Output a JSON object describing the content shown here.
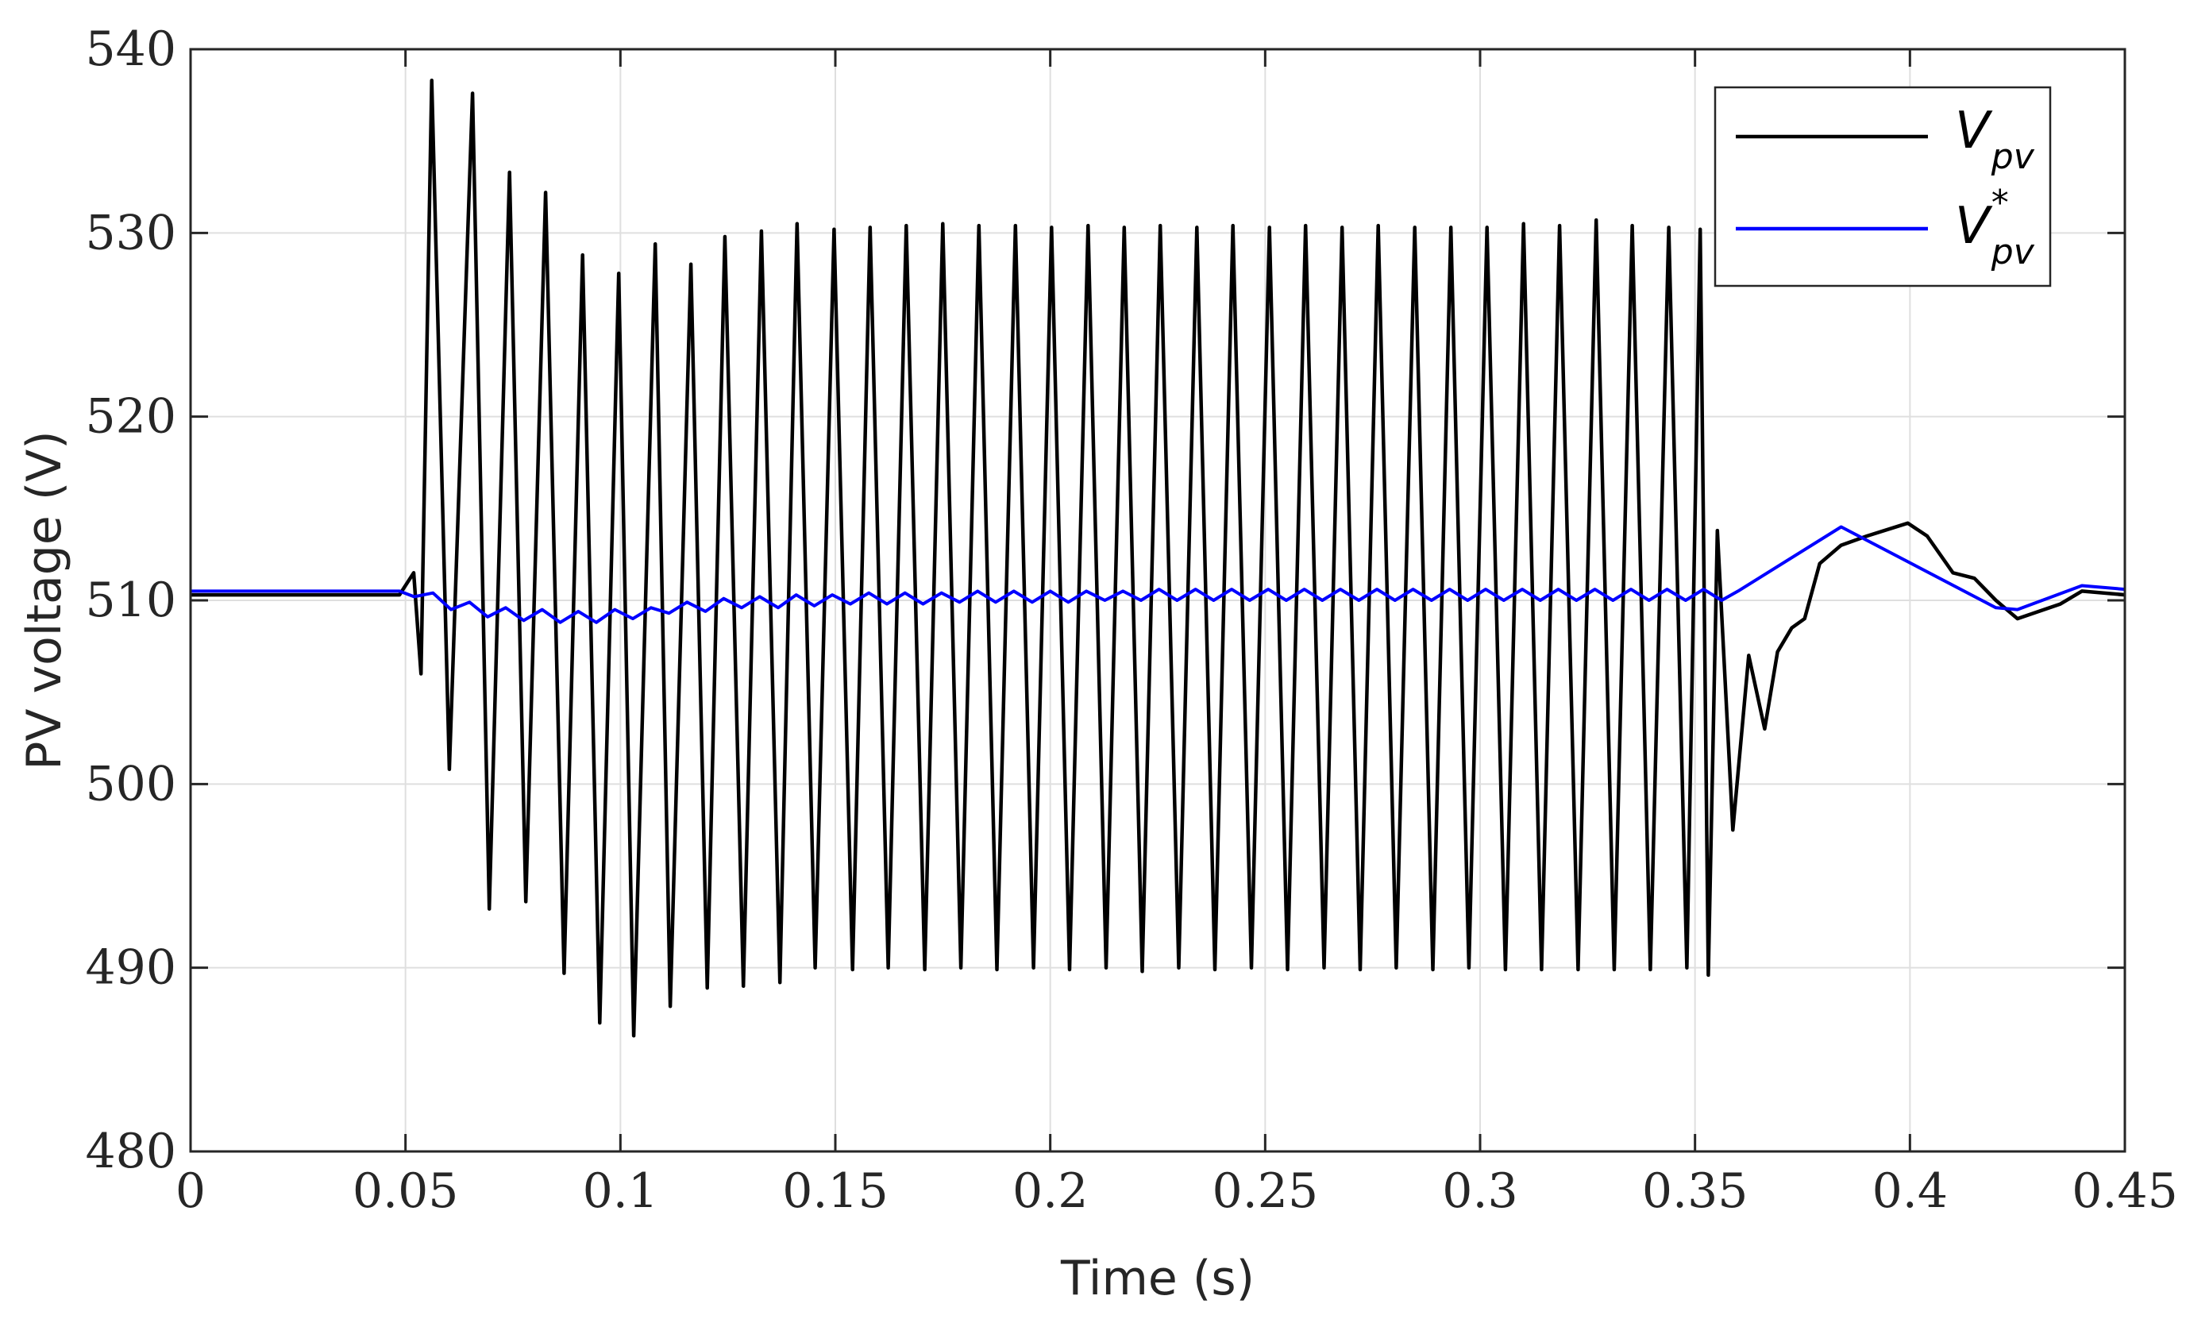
{
  "chart_data": {
    "type": "line",
    "title": "",
    "xlabel": "Time (s)",
    "ylabel": "PV voltage (V)",
    "xlim": [
      0,
      0.45
    ],
    "ylim": [
      480,
      540
    ],
    "xticks": [
      0,
      0.05,
      0.1,
      0.15,
      0.2,
      0.25,
      0.3,
      0.35,
      0.4,
      0.45
    ],
    "xtick_labels": [
      "0",
      "0.05",
      "0.1",
      "0.15",
      "0.2",
      "0.25",
      "0.3",
      "0.35",
      "0.4",
      "0.45"
    ],
    "yticks": [
      480,
      490,
      500,
      510,
      520,
      530,
      540
    ],
    "ytick_labels": [
      "480",
      "490",
      "500",
      "510",
      "520",
      "530",
      "540"
    ],
    "grid": true,
    "legend_position": "top-right",
    "series": [
      {
        "name": "V_pv",
        "legend_main": "V",
        "legend_sub": "pv",
        "legend_sup": "",
        "color": "#000000",
        "x": [
          0,
          0.0486,
          0.0519,
          0.0536,
          0.0561,
          0.0602,
          0.0656,
          0.0695,
          0.0742,
          0.078,
          0.0826,
          0.0869,
          0.0912,
          0.0952,
          0.0996,
          0.1031,
          0.1081,
          0.1116,
          0.1164,
          0.1202,
          0.1243,
          0.1286,
          0.1328,
          0.1371,
          0.1411,
          0.1453,
          0.1497,
          0.154,
          0.1581,
          0.1623,
          0.1665,
          0.1708,
          0.175,
          0.1792,
          0.1834,
          0.1876,
          0.1919,
          0.1961,
          0.2003,
          0.2045,
          0.2088,
          0.213,
          0.2172,
          0.2214,
          0.2256,
          0.2299,
          0.2341,
          0.2383,
          0.2425,
          0.2468,
          0.251,
          0.2552,
          0.2594,
          0.2637,
          0.2679,
          0.2721,
          0.2763,
          0.2805,
          0.2848,
          0.289,
          0.2932,
          0.2974,
          0.3016,
          0.3059,
          0.3101,
          0.3143,
          0.3185,
          0.3228,
          0.327,
          0.3312,
          0.3354,
          0.3396,
          0.3439,
          0.3481,
          0.3512,
          0.3531,
          0.3552,
          0.3588,
          0.3625,
          0.3662,
          0.3692,
          0.3725,
          0.3755,
          0.379,
          0.384,
          0.39,
          0.3995,
          0.404,
          0.41,
          0.415,
          0.42,
          0.425,
          0.435,
          0.44,
          0.45
        ],
        "y": [
          510.3,
          510.3,
          511.5,
          506.0,
          538.3,
          500.8,
          537.6,
          493.2,
          533.3,
          493.6,
          532.2,
          489.7,
          528.8,
          487.0,
          527.8,
          486.3,
          529.4,
          487.9,
          528.3,
          488.9,
          529.8,
          489.0,
          530.1,
          489.2,
          530.5,
          490.0,
          530.2,
          489.9,
          530.3,
          490.0,
          530.4,
          489.9,
          530.5,
          490.0,
          530.4,
          489.9,
          530.4,
          490.0,
          530.3,
          489.9,
          530.4,
          490.0,
          530.3,
          489.8,
          530.4,
          490.0,
          530.3,
          489.9,
          530.4,
          490.0,
          530.3,
          489.9,
          530.4,
          490.0,
          530.3,
          489.9,
          530.4,
          490.0,
          530.3,
          489.9,
          530.3,
          490.0,
          530.3,
          489.9,
          530.5,
          489.9,
          530.4,
          489.9,
          530.7,
          489.9,
          530.4,
          489.9,
          530.3,
          490.0,
          530.2,
          489.6,
          513.8,
          497.5,
          507.0,
          503.0,
          507.2,
          508.5,
          509.0,
          512.0,
          513.0,
          513.5,
          514.2,
          513.5,
          511.5,
          511.2,
          510.0,
          509.0,
          509.8,
          510.5,
          510.3
        ]
      },
      {
        "name": "V*_pv",
        "legend_main": "V",
        "legend_sub": "pv",
        "legend_sup": "*",
        "color": "#0000ff",
        "x": [
          0,
          0.0486,
          0.052,
          0.0564,
          0.0606,
          0.0649,
          0.0691,
          0.0733,
          0.0775,
          0.0818,
          0.086,
          0.0902,
          0.0944,
          0.0987,
          0.1029,
          0.1071,
          0.1113,
          0.1155,
          0.1198,
          0.124,
          0.1282,
          0.1324,
          0.1367,
          0.1409,
          0.1451,
          0.1493,
          0.1535,
          0.1578,
          0.162,
          0.1662,
          0.1704,
          0.1747,
          0.1789,
          0.1831,
          0.1873,
          0.1915,
          0.1958,
          0.2,
          0.2042,
          0.2084,
          0.2127,
          0.2169,
          0.2211,
          0.2253,
          0.2295,
          0.2338,
          0.238,
          0.2422,
          0.2464,
          0.2507,
          0.2549,
          0.2591,
          0.2633,
          0.2675,
          0.2718,
          0.276,
          0.2802,
          0.2844,
          0.2887,
          0.2929,
          0.2971,
          0.3013,
          0.3055,
          0.3098,
          0.314,
          0.3182,
          0.3224,
          0.3267,
          0.3309,
          0.3351,
          0.3393,
          0.3435,
          0.3478,
          0.352,
          0.3562,
          0.36,
          0.384,
          0.42,
          0.425,
          0.44,
          0.45
        ],
        "y": [
          510.5,
          510.5,
          510.2,
          510.4,
          509.5,
          509.9,
          509.1,
          509.6,
          508.9,
          509.5,
          508.8,
          509.4,
          508.8,
          509.5,
          509.0,
          509.6,
          509.3,
          509.9,
          509.4,
          510.1,
          509.6,
          510.2,
          509.6,
          510.3,
          509.7,
          510.3,
          509.8,
          510.4,
          509.8,
          510.4,
          509.8,
          510.4,
          509.9,
          510.5,
          509.9,
          510.5,
          509.9,
          510.5,
          509.9,
          510.5,
          510.0,
          510.5,
          510.0,
          510.6,
          510.0,
          510.6,
          510.0,
          510.6,
          510.0,
          510.6,
          510.0,
          510.6,
          510.0,
          510.6,
          510.0,
          510.6,
          510.0,
          510.6,
          510.0,
          510.6,
          510.0,
          510.6,
          510.0,
          510.6,
          510.0,
          510.6,
          510.0,
          510.6,
          510.0,
          510.6,
          510.0,
          510.6,
          510.0,
          510.6,
          510.0,
          510.5,
          514.0,
          509.6,
          509.5,
          510.8,
          510.6
        ]
      }
    ]
  }
}
